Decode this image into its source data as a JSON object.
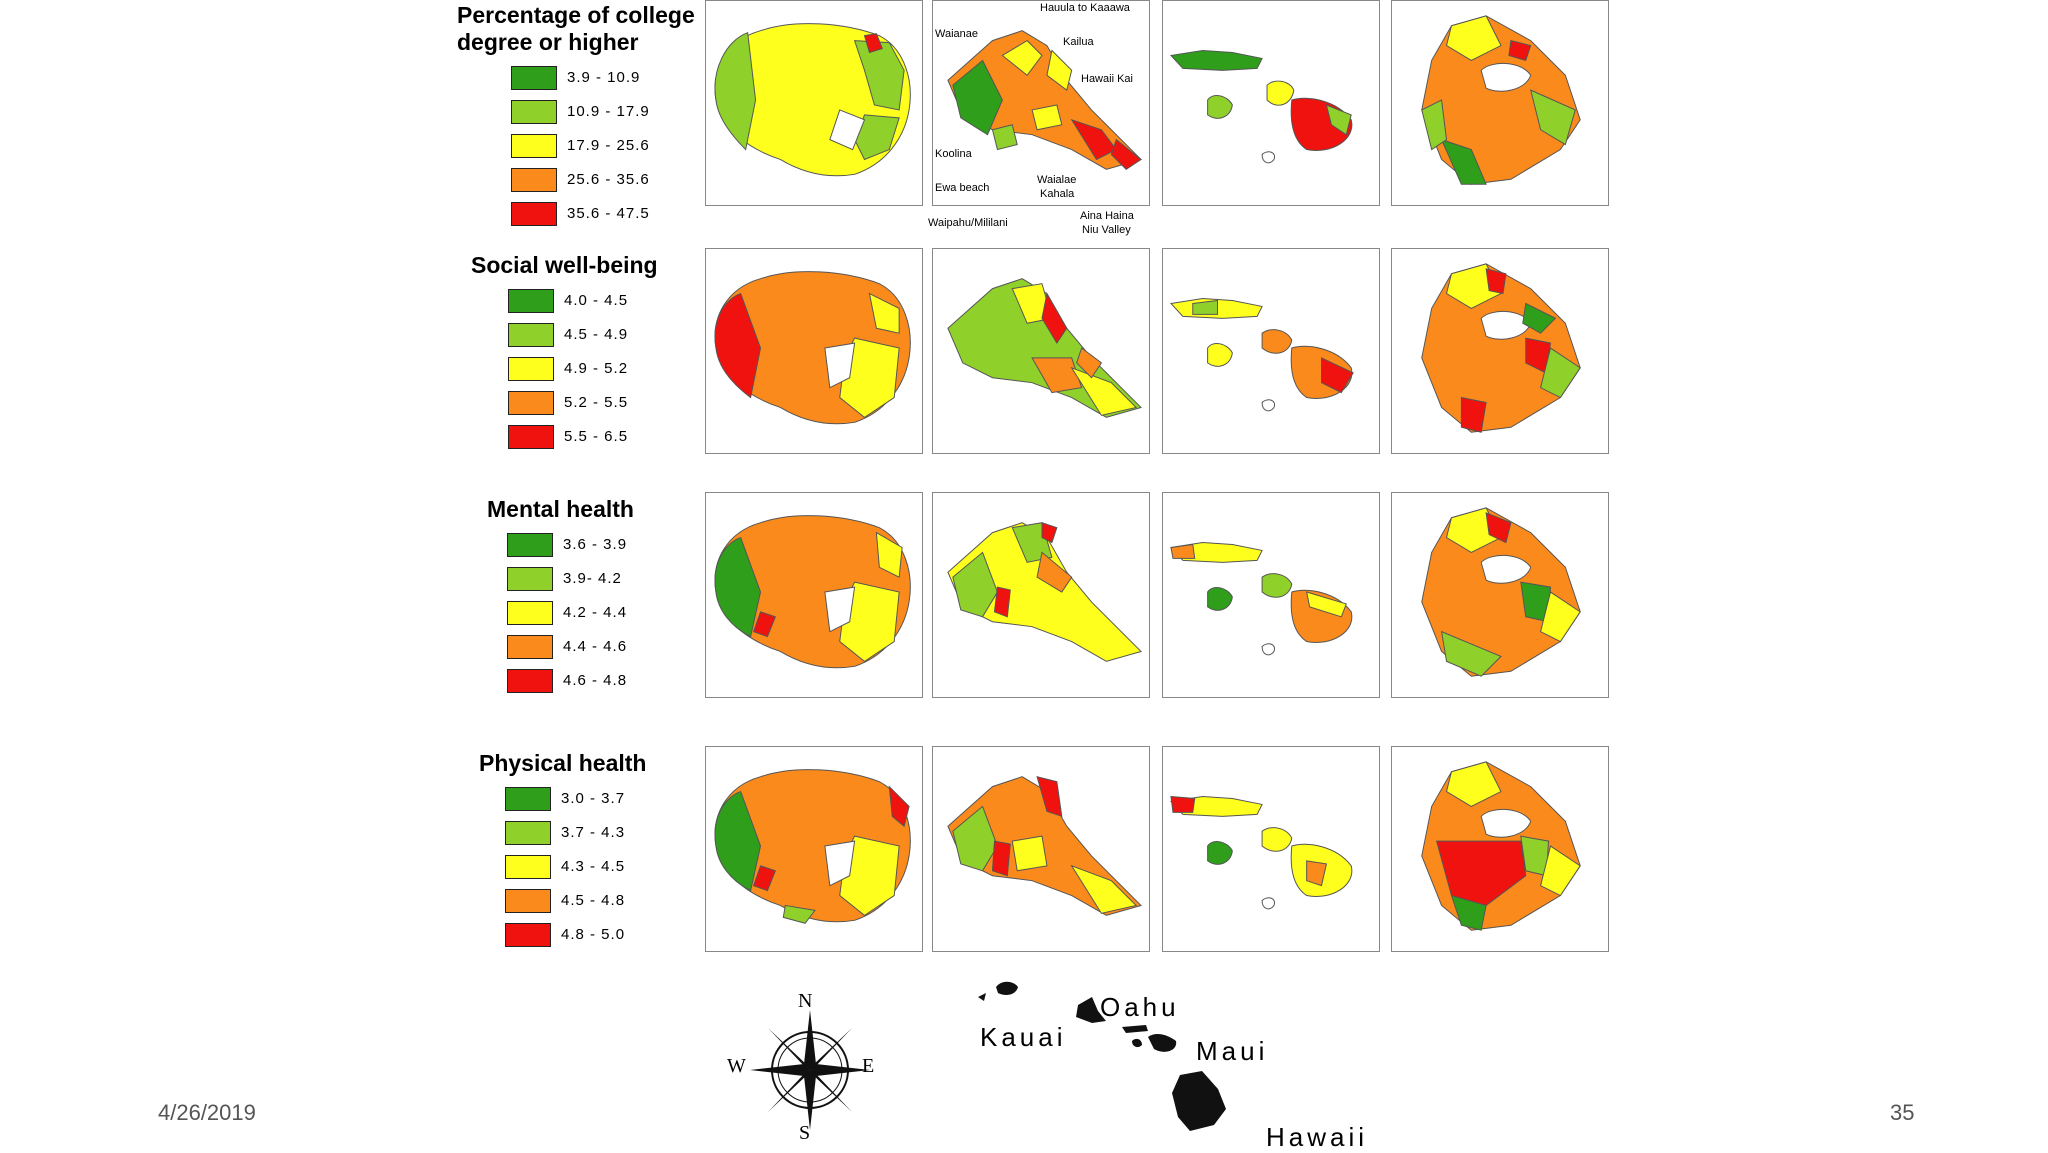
{
  "colors": {
    "dark_green": "#2e9e1b",
    "light_green": "#8fd12a",
    "yellow": "#ffff1e",
    "orange": "#fb8a1c",
    "red": "#f0120e",
    "outline": "#555555"
  },
  "legends": [
    {
      "title_lines": [
        "Percentage of college",
        "degree or higher"
      ],
      "items": [
        {
          "range": "3.9 - 10.9",
          "color": "#2e9e1b"
        },
        {
          "range": "10.9 - 17.9",
          "color": "#8fd12a"
        },
        {
          "range": "17.9 - 25.6",
          "color": "#ffff1e"
        },
        {
          "range": "25.6 - 35.6",
          "color": "#fb8a1c"
        },
        {
          "range": "35.6 - 47.5",
          "color": "#f0120e"
        }
      ]
    },
    {
      "title_lines": [
        "Social well-being"
      ],
      "items": [
        {
          "range": "4.0 - 4.5",
          "color": "#2e9e1b"
        },
        {
          "range": "4.5 - 4.9",
          "color": "#8fd12a"
        },
        {
          "range": "4.9 - 5.2",
          "color": "#ffff1e"
        },
        {
          "range": "5.2 - 5.5",
          "color": "#fb8a1c"
        },
        {
          "range": "5.5 - 6.5",
          "color": "#f0120e"
        }
      ]
    },
    {
      "title_lines": [
        "Mental health"
      ],
      "items": [
        {
          "range": "3.6 - 3.9",
          "color": "#2e9e1b"
        },
        {
          "range": "3.9- 4.2",
          "color": "#8fd12a"
        },
        {
          "range": "4.2 - 4.4",
          "color": "#ffff1e"
        },
        {
          "range": "4.4 - 4.6",
          "color": "#fb8a1c"
        },
        {
          "range": "4.6 - 4.8",
          "color": "#f0120e"
        }
      ]
    },
    {
      "title_lines": [
        "Physical health"
      ],
      "items": [
        {
          "range": "3.0 - 3.7",
          "color": "#2e9e1b"
        },
        {
          "range": "3.7 - 4.3",
          "color": "#8fd12a"
        },
        {
          "range": "4.3 - 4.5",
          "color": "#ffff1e"
        },
        {
          "range": "4.5 - 4.8",
          "color": "#fb8a1c"
        },
        {
          "range": "4.8 - 5.0",
          "color": "#f0120e"
        }
      ]
    }
  ],
  "oahu_callouts": {
    "hauula": "Hauula to Kaaawa",
    "waianae": "Waianae",
    "kailua": "Kailua",
    "hawaii_kai": "Hawaii Kai",
    "koolina": "Koolina",
    "ewa_beach": "Ewa beach",
    "waialae_kahala": [
      "Waialae",
      "Kahala"
    ],
    "waipahu_mililani": "Waipahu/Mililani",
    "aina_haina": [
      "Aina Haina",
      "Niu Valley"
    ]
  },
  "key_map": {
    "islands": [
      "Kauai",
      "Oahu",
      "Maui",
      "Hawaii"
    ],
    "compass": {
      "north": "N",
      "south": "S",
      "east": "E",
      "west": "W"
    }
  },
  "footer": {
    "date": "4/26/2019",
    "page_number": "35"
  }
}
